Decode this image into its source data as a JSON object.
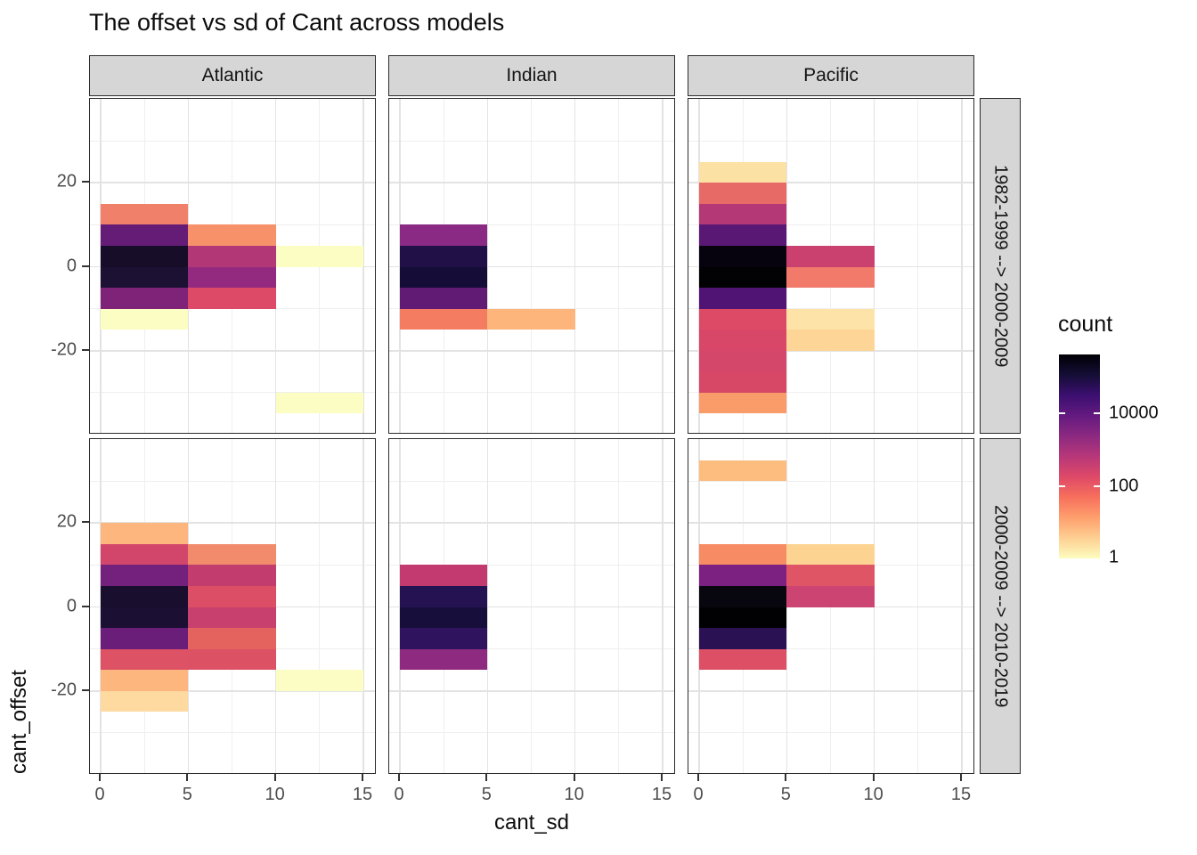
{
  "title": "The offset vs sd of Cant across models",
  "axes": {
    "x_title": "cant_sd",
    "y_title": "cant_offset",
    "x_ticks": [
      "0",
      "5",
      "10",
      "15"
    ],
    "x_tick_values": [
      0,
      5,
      10,
      15
    ],
    "y_ticks": [
      "20",
      "0",
      "-20"
    ],
    "y_tick_values": [
      20,
      0,
      -20
    ]
  },
  "facets": {
    "columns": [
      "Atlantic",
      "Indian",
      "Pacific"
    ],
    "rows": [
      "1982-1999 --> 2000-2009",
      "2000-2009 --> 2010-2019"
    ]
  },
  "legend": {
    "title": "count",
    "tick_labels": [
      "10000",
      "100",
      "1"
    ],
    "tick_values": [
      10000,
      100,
      1
    ],
    "colormap": "magma-reversed",
    "gradient_stops": [
      "#000004",
      "#140e36",
      "#3b0f70",
      "#641a80",
      "#8c2981",
      "#b73779",
      "#de4968",
      "#f7705c",
      "#fe9f6d",
      "#fecf92",
      "#fcfdbf"
    ]
  },
  "chart_data": {
    "type": "heatmap",
    "title": "The offset vs sd of Cant across models",
    "xlabel": "cant_sd",
    "ylabel": "cant_offset",
    "bin_width_x": 5,
    "bin_height_y": 5,
    "x_range": [
      -0.6,
      15.7
    ],
    "y_range": [
      -40,
      40
    ],
    "grid": {
      "x_major": [
        0,
        5,
        10,
        15
      ],
      "x_minor": [
        2.5,
        7.5,
        12.5
      ],
      "y_major": [
        20,
        0,
        -20
      ],
      "y_minor": [
        30,
        10,
        -10,
        -30
      ]
    },
    "fill_scale": {
      "name": "count",
      "transform": "log10",
      "low_color": "#fcfdbf",
      "high_color": "#000004"
    },
    "panels": [
      {
        "row_index": 0,
        "col_index": 0,
        "row": "1982-1999 --> 2000-2009",
        "column": "Atlantic",
        "tiles": [
          {
            "x": 0,
            "y": 10,
            "color": "#f08069",
            "count_approx": 50
          },
          {
            "x": 0,
            "y": 5,
            "color": "#651c77",
            "count_approx": 8000
          },
          {
            "x": 0,
            "y": 0,
            "color": "#170d28",
            "count_approx": 100000
          },
          {
            "x": 0,
            "y": -5,
            "color": "#1c1132",
            "count_approx": 70000
          },
          {
            "x": 0,
            "y": -10,
            "color": "#7f2379",
            "count_approx": 3000
          },
          {
            "x": 0,
            "y": -15,
            "color": "#fbfdc2",
            "count_approx": 1
          },
          {
            "x": 5,
            "y": 5,
            "color": "#f7916a",
            "count_approx": 25
          },
          {
            "x": 5,
            "y": 0,
            "color": "#b23777",
            "count_approx": 600
          },
          {
            "x": 5,
            "y": -5,
            "color": "#932a80",
            "count_approx": 1500
          },
          {
            "x": 5,
            "y": -10,
            "color": "#dd4a67",
            "count_approx": 120
          },
          {
            "x": 10,
            "y": 0,
            "color": "#fbfdc2",
            "count_approx": 1
          },
          {
            "x": 10,
            "y": -35,
            "color": "#fbfdc2",
            "count_approx": 1
          }
        ]
      },
      {
        "row_index": 0,
        "col_index": 1,
        "row": "1982-1999 --> 2000-2009",
        "column": "Indian",
        "tiles": [
          {
            "x": 0,
            "y": 5,
            "color": "#8a2a84",
            "count_approx": 2000
          },
          {
            "x": 0,
            "y": 0,
            "color": "#211048",
            "count_approx": 50000
          },
          {
            "x": 0,
            "y": -5,
            "color": "#150d38",
            "count_approx": 90000
          },
          {
            "x": 0,
            "y": -10,
            "color": "#621b74",
            "count_approx": 9000
          },
          {
            "x": 0,
            "y": -15,
            "color": "#f47c60",
            "count_approx": 40
          },
          {
            "x": 5,
            "y": -15,
            "color": "#fdb57c",
            "count_approx": 8
          }
        ]
      },
      {
        "row_index": 0,
        "col_index": 2,
        "row": "1982-1999 --> 2000-2009",
        "column": "Pacific",
        "tiles": [
          {
            "x": 0,
            "y": 20,
            "color": "#fce1a4",
            "count_approx": 3
          },
          {
            "x": 0,
            "y": 15,
            "color": "#e76a67",
            "count_approx": 80
          },
          {
            "x": 0,
            "y": 10,
            "color": "#b43876",
            "count_approx": 600
          },
          {
            "x": 0,
            "y": 5,
            "color": "#5a1875",
            "count_approx": 12000
          },
          {
            "x": 0,
            "y": 0,
            "color": "#06030e",
            "count_approx": 250000
          },
          {
            "x": 0,
            "y": -5,
            "color": "#020104",
            "count_approx": 300000
          },
          {
            "x": 0,
            "y": -10,
            "color": "#4f1474",
            "count_approx": 15000
          },
          {
            "x": 0,
            "y": -15,
            "color": "#dd4a66",
            "count_approx": 120
          },
          {
            "x": 0,
            "y": -20,
            "color": "#d84767",
            "count_approx": 140
          },
          {
            "x": 0,
            "y": -25,
            "color": "#d4476b",
            "count_approx": 160
          },
          {
            "x": 0,
            "y": -30,
            "color": "#d74866",
            "count_approx": 150
          },
          {
            "x": 0,
            "y": -35,
            "color": "#f99c6a",
            "count_approx": 20
          },
          {
            "x": 5,
            "y": 0,
            "color": "#ca406f",
            "count_approx": 250
          },
          {
            "x": 5,
            "y": -5,
            "color": "#f17a6b",
            "count_approx": 45
          },
          {
            "x": 5,
            "y": -15,
            "color": "#fde3a8",
            "count_approx": 3
          },
          {
            "x": 5,
            "y": -20,
            "color": "#fdd596",
            "count_approx": 5
          }
        ]
      },
      {
        "row_index": 1,
        "col_index": 0,
        "row": "2000-2009 --> 2010-2019",
        "column": "Atlantic",
        "tiles": [
          {
            "x": 0,
            "y": 15,
            "color": "#feb67f",
            "count_approx": 8
          },
          {
            "x": 0,
            "y": 10,
            "color": "#d3466b",
            "count_approx": 180
          },
          {
            "x": 0,
            "y": 5,
            "color": "#73217c",
            "count_approx": 4500
          },
          {
            "x": 0,
            "y": 0,
            "color": "#190e2d",
            "count_approx": 90000
          },
          {
            "x": 0,
            "y": -5,
            "color": "#1b0f33",
            "count_approx": 80000
          },
          {
            "x": 0,
            "y": -10,
            "color": "#6a1d79",
            "count_approx": 6000
          },
          {
            "x": 0,
            "y": -15,
            "color": "#dd5264",
            "count_approx": 110
          },
          {
            "x": 0,
            "y": -20,
            "color": "#feb67f",
            "count_approx": 8
          },
          {
            "x": 0,
            "y": -25,
            "color": "#fed9a0",
            "count_approx": 4
          },
          {
            "x": 5,
            "y": 10,
            "color": "#f28b6b",
            "count_approx": 30
          },
          {
            "x": 5,
            "y": 5,
            "color": "#c23c6e",
            "count_approx": 350
          },
          {
            "x": 5,
            "y": 0,
            "color": "#dc4e66",
            "count_approx": 120
          },
          {
            "x": 5,
            "y": -5,
            "color": "#c8406e",
            "count_approx": 280
          },
          {
            "x": 5,
            "y": -10,
            "color": "#e4635f",
            "count_approx": 90
          },
          {
            "x": 5,
            "y": -15,
            "color": "#dc5264",
            "count_approx": 110
          },
          {
            "x": 10,
            "y": -20,
            "color": "#fcfdc4",
            "count_approx": 1
          }
        ]
      },
      {
        "row_index": 1,
        "col_index": 1,
        "row": "2000-2009 --> 2010-2019",
        "column": "Indian",
        "tiles": [
          {
            "x": 0,
            "y": 5,
            "color": "#c23a70",
            "count_approx": 350
          },
          {
            "x": 0,
            "y": 0,
            "color": "#241253",
            "count_approx": 40000
          },
          {
            "x": 0,
            "y": -5,
            "color": "#170e3c",
            "count_approx": 80000
          },
          {
            "x": 0,
            "y": -10,
            "color": "#2f135e",
            "count_approx": 25000
          },
          {
            "x": 0,
            "y": -15,
            "color": "#8f2a81",
            "count_approx": 1800
          }
        ]
      },
      {
        "row_index": 1,
        "col_index": 2,
        "row": "2000-2009 --> 2010-2019",
        "column": "Pacific",
        "tiles": [
          {
            "x": 0,
            "y": 30,
            "color": "#fdbd7f",
            "count_approx": 7
          },
          {
            "x": 0,
            "y": 10,
            "color": "#f78b64",
            "count_approx": 28
          },
          {
            "x": 0,
            "y": 5,
            "color": "#7c2181",
            "count_approx": 3500
          },
          {
            "x": 0,
            "y": 0,
            "color": "#08060f",
            "count_approx": 200000
          },
          {
            "x": 0,
            "y": -5,
            "color": "#010103",
            "count_approx": 300000
          },
          {
            "x": 0,
            "y": -10,
            "color": "#2a1153",
            "count_approx": 30000
          },
          {
            "x": 0,
            "y": -15,
            "color": "#dd4f65",
            "count_approx": 110
          },
          {
            "x": 5,
            "y": 10,
            "color": "#fdd391",
            "count_approx": 5
          },
          {
            "x": 5,
            "y": 5,
            "color": "#e05566",
            "count_approx": 100
          },
          {
            "x": 5,
            "y": 0,
            "color": "#cb4472",
            "count_approx": 240
          }
        ]
      }
    ]
  }
}
